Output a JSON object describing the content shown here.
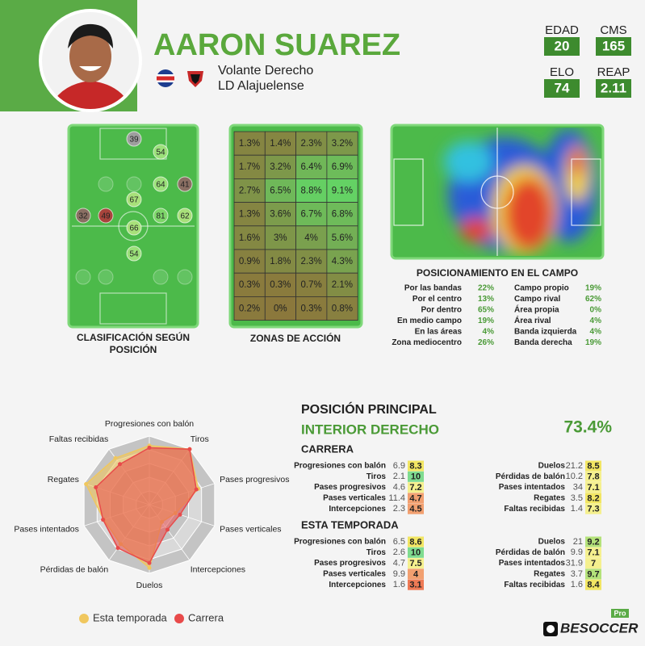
{
  "header": {
    "name": "AARON SUAREZ",
    "position": "Volante Derecho",
    "team": "LD Alajuelense",
    "stats": [
      {
        "label": "EDAD",
        "value": 20
      },
      {
        "label": "CMS",
        "value": 165
      },
      {
        "label": "ELO",
        "value": 74
      },
      {
        "label": "REAP",
        "value": 2.11
      }
    ]
  },
  "position_map": {
    "title_lines": [
      "CLASIFICACIÓN SEGÚN",
      "POSICIÓN"
    ],
    "positions": [
      {
        "value": 39,
        "color": "#9e9e9e"
      },
      {
        "value": 54,
        "color": "#9be07a"
      },
      {
        "value": 64,
        "color": "#9be07a"
      },
      {
        "value": 41,
        "color": "#8a6f63"
      },
      {
        "value": 67,
        "color": "#a8e07a"
      },
      {
        "value": 32,
        "color": "#8a6f63"
      },
      {
        "value": 49,
        "color": "#a8443c"
      },
      {
        "value": 81,
        "color": "#7ed66a"
      },
      {
        "value": 62,
        "color": "#a8e07a"
      },
      {
        "value": 66,
        "color": "#a8e07a"
      },
      {
        "value": 54,
        "color": "#9be07a"
      }
    ]
  },
  "zones": {
    "title": "ZONAS DE ACCIÓN",
    "rows": [
      [
        "1.3%",
        "1.4%",
        "2.3%",
        "3.2%"
      ],
      [
        "1.7%",
        "3.2%",
        "6.4%",
        "6.9%"
      ],
      [
        "2.7%",
        "6.5%",
        "8.8%",
        "9.1%"
      ],
      [
        "1.3%",
        "3.6%",
        "6.7%",
        "6.8%"
      ],
      [
        "1.6%",
        "3%",
        "4%",
        "5.6%"
      ],
      [
        "0.9%",
        "1.8%",
        "2.3%",
        "4.3%"
      ],
      [
        "0.3%",
        "0.3%",
        "0.7%",
        "2.1%"
      ],
      [
        "0.2%",
        "0%",
        "0.3%",
        "0.8%"
      ]
    ]
  },
  "field": {
    "title": "POSICIONAMIENTO EN EL CAMPO",
    "left": [
      {
        "label": "Por las bandas",
        "value": "22%"
      },
      {
        "label": "Por el centro",
        "value": "13%"
      },
      {
        "label": "Por dentro",
        "value": "65%"
      },
      {
        "label": "En medio campo",
        "value": "19%"
      },
      {
        "label": "En las áreas",
        "value": "4%"
      },
      {
        "label": "Zona mediocentro",
        "value": "26%"
      }
    ],
    "right": [
      {
        "label": "Campo propio",
        "value": "19%"
      },
      {
        "label": "Campo rival",
        "value": "62%"
      },
      {
        "label": "Área propia",
        "value": "0%"
      },
      {
        "label": "Área rival",
        "value": "4%"
      },
      {
        "label": "Banda izquierda",
        "value": "4%"
      },
      {
        "label": "Banda derecha",
        "value": "19%"
      }
    ]
  },
  "main_position": {
    "heading": "POSICIÓN PRINCIPAL",
    "name": "INTERIOR DERECHO",
    "share": "73.4%"
  },
  "tables": [
    {
      "title": "CARRERA",
      "left": [
        {
          "label": "Progresiones con balón",
          "value": 6.9,
          "score": 8.3
        },
        {
          "label": "Tiros",
          "value": 2.1,
          "score": 10
        },
        {
          "label": "Pases progresivos",
          "value": 4.6,
          "score": 7.2
        },
        {
          "label": "Pases verticales",
          "value": 11.4,
          "score": 4.7
        },
        {
          "label": "Intercepciones",
          "value": 2.3,
          "score": 4.5
        }
      ],
      "right": [
        {
          "label": "Duelos",
          "value": 21.2,
          "score": 8.5
        },
        {
          "label": "Pérdidas de balón",
          "value": 10.2,
          "score": 7.8
        },
        {
          "label": "Pases intentados",
          "value": 34,
          "score": 7.1
        },
        {
          "label": "Regates",
          "value": 3.5,
          "score": 8.2
        },
        {
          "label": "Faltas recibidas",
          "value": 1.4,
          "score": 7.3
        }
      ]
    },
    {
      "title": "ESTA TEMPORADA",
      "left": [
        {
          "label": "Progresiones con balón",
          "value": 6.5,
          "score": 8.6
        },
        {
          "label": "Tiros",
          "value": 2.6,
          "score": 10
        },
        {
          "label": "Pases progresivos",
          "value": 4.7,
          "score": 7.5
        },
        {
          "label": "Pases verticales",
          "value": 9.9,
          "score": 4
        },
        {
          "label": "Intercepciones",
          "value": 1.6,
          "score": 3.1
        }
      ],
      "right": [
        {
          "label": "Duelos",
          "value": 21,
          "score": 9.2
        },
        {
          "label": "Pérdidas de balón",
          "value": 9.9,
          "score": 7.1
        },
        {
          "label": "Pases intentados",
          "value": 31.9,
          "score": 7
        },
        {
          "label": "Regates",
          "value": 3.7,
          "score": 9.7
        },
        {
          "label": "Faltas recibidas",
          "value": 1.6,
          "score": 8.4
        }
      ]
    }
  ],
  "chart_data": {
    "type": "radar",
    "categories": [
      "Progresiones con balón",
      "Tiros",
      "Pases progresivos",
      "Pases verticales",
      "Intercepciones",
      "Duelos",
      "Pérdidas de balón",
      "Pases intentados",
      "Regates",
      "Faltas recibidas"
    ],
    "ylim": [
      0,
      10
    ],
    "yticks": [
      2,
      4,
      6,
      8,
      10
    ],
    "series": [
      {
        "name": "Esta temporada",
        "color": "#f0c75e",
        "values": [
          8.6,
          10,
          7.5,
          4,
          3.1,
          9.2,
          7.1,
          7,
          9.7,
          8.4
        ]
      },
      {
        "name": "Carrera",
        "color": "#e84a4a",
        "values": [
          8.3,
          10,
          7.2,
          4.7,
          4.5,
          8.5,
          7.8,
          7.1,
          8.2,
          7.3
        ]
      }
    ]
  },
  "brand": {
    "name": "BESOCCER",
    "tier": "Pro"
  }
}
